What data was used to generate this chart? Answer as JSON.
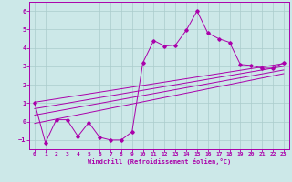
{
  "xlabel": "Windchill (Refroidissement éolien,°C)",
  "bg_color": "#cce8e8",
  "line_color": "#aa00aa",
  "grid_color": "#aacccc",
  "xlim": [
    -0.5,
    23.5
  ],
  "ylim": [
    -1.5,
    6.5
  ],
  "xticks": [
    0,
    1,
    2,
    3,
    4,
    5,
    6,
    7,
    8,
    9,
    10,
    11,
    12,
    13,
    14,
    15,
    16,
    17,
    18,
    19,
    20,
    21,
    22,
    23
  ],
  "yticks": [
    -1,
    0,
    1,
    2,
    3,
    4,
    5,
    6
  ],
  "main_series": [
    [
      0,
      1.0
    ],
    [
      1,
      -1.15
    ],
    [
      2,
      0.1
    ],
    [
      3,
      0.1
    ],
    [
      4,
      -0.8
    ],
    [
      5,
      -0.05
    ],
    [
      6,
      -0.85
    ],
    [
      7,
      -1.0
    ],
    [
      8,
      -1.0
    ],
    [
      9,
      -0.55
    ],
    [
      10,
      3.2
    ],
    [
      11,
      4.4
    ],
    [
      12,
      4.1
    ],
    [
      13,
      4.15
    ],
    [
      14,
      4.95
    ],
    [
      15,
      6.0
    ],
    [
      16,
      4.8
    ],
    [
      17,
      4.5
    ],
    [
      18,
      4.3
    ],
    [
      19,
      3.1
    ],
    [
      20,
      3.05
    ],
    [
      21,
      2.9
    ],
    [
      22,
      2.9
    ],
    [
      23,
      3.2
    ]
  ],
  "regression_lines": [
    {
      "x0": 0,
      "y0": 1.05,
      "x1": 23,
      "y1": 3.15
    },
    {
      "x0": 0,
      "y0": 0.7,
      "x1": 23,
      "y1": 3.0
    },
    {
      "x0": 0,
      "y0": 0.35,
      "x1": 23,
      "y1": 2.8
    },
    {
      "x0": 0,
      "y0": -0.1,
      "x1": 23,
      "y1": 2.6
    }
  ]
}
